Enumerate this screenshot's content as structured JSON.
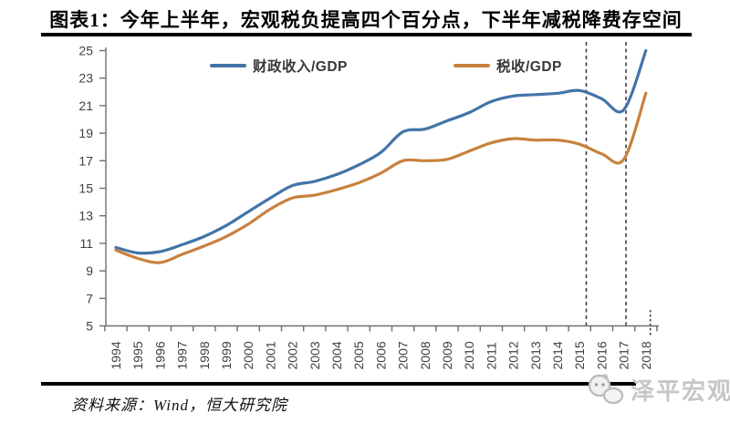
{
  "header": {
    "title": "图表1：今年上半年，宏观税负提高四个百分点，下半年减税降费存空间"
  },
  "footer": {
    "source": "资料来源：Wind，恒大研究院",
    "watermark": "泽平宏观"
  },
  "chart_data": {
    "type": "line",
    "title": "图表1：今年上半年，宏观税负提高四个百分点，下半年减税降费存空间",
    "x": [
      1994,
      1995,
      1996,
      1997,
      1998,
      1999,
      2000,
      2001,
      2002,
      2003,
      2004,
      2005,
      2006,
      2007,
      2008,
      2009,
      2010,
      2011,
      2012,
      2013,
      2014,
      2015,
      2016,
      2017,
      2018
    ],
    "series": [
      {
        "name": "财政收入/GDP",
        "color": "#4274A8",
        "values": [
          10.7,
          10.3,
          10.4,
          10.9,
          11.5,
          12.3,
          13.3,
          14.3,
          15.2,
          15.5,
          16.0,
          16.7,
          17.6,
          19.1,
          19.3,
          19.9,
          20.5,
          21.3,
          21.7,
          21.8,
          21.9,
          22.1,
          21.5,
          20.7,
          25.0
        ]
      },
      {
        "name": "税收/GDP",
        "color": "#C8813E",
        "values": [
          10.5,
          9.9,
          9.6,
          10.2,
          10.8,
          11.5,
          12.4,
          13.5,
          14.3,
          14.5,
          14.9,
          15.4,
          16.1,
          17.0,
          17.0,
          17.1,
          17.7,
          18.3,
          18.6,
          18.5,
          18.5,
          18.2,
          17.5,
          17.1,
          21.9
        ]
      }
    ],
    "ylim": [
      5,
      25
    ],
    "ytick_step": 2,
    "yticks": [
      5,
      7,
      9,
      11,
      13,
      15,
      17,
      19,
      21,
      23,
      25
    ],
    "grid": false,
    "legend_position": "top-inside",
    "annotations": {
      "dashed_vlines_x": [
        2015.3,
        2017.1
      ],
      "dotted_vline_x": 2018.2
    }
  },
  "colors": {
    "axis": "#6f6f6f",
    "tick_label": "#404040",
    "dashed_line": "#3f3f3f",
    "rule": "#000000",
    "watermark": "#c6c6c6"
  }
}
